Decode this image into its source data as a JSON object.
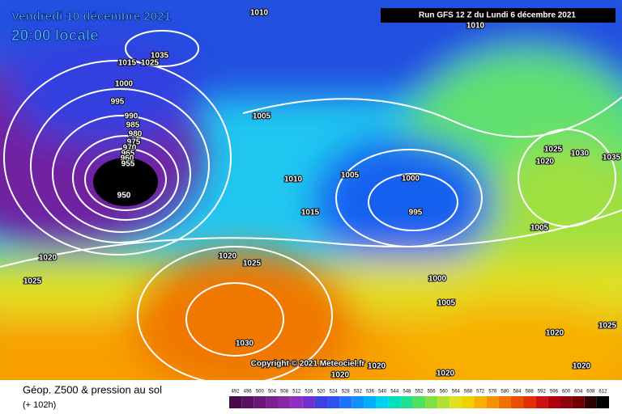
{
  "header": {
    "date": "Vendredi 10 décembre 2021",
    "time": "20:00 locale",
    "run": "Run GFS 12 Z du Lundi 6 décembre 2021"
  },
  "copyright": "Copyright © 2021 Meteociel.fr",
  "footer": {
    "title": "Géop. Z500 & pression au sol",
    "lead": "(+ 102h)"
  },
  "isobar_labels": [
    1010,
    1010,
    1035,
    1015,
    1025,
    1000,
    995,
    990,
    985,
    980,
    975,
    970,
    965,
    960,
    955,
    950,
    1005,
    1005,
    1000,
    995,
    1010,
    1015,
    1020,
    1020,
    1025,
    1025,
    1030,
    1000,
    1005,
    1005,
    1020,
    1025,
    1030,
    1035,
    1020,
    1025,
    1020,
    1020,
    1020,
    1020
  ],
  "scale": {
    "values": [
      492,
      496,
      500,
      504,
      508,
      512,
      516,
      520,
      524,
      528,
      532,
      536,
      540,
      544,
      548,
      552,
      556,
      560,
      564,
      568,
      572,
      576,
      580,
      584,
      588,
      592,
      596,
      600,
      604,
      608,
      612
    ],
    "colors": [
      "#4a0a4a",
      "#5a1060",
      "#6a1878",
      "#7a2090",
      "#8a28a8",
      "#9030c0",
      "#7030d0",
      "#4040e0",
      "#3050f0",
      "#2070ff",
      "#1090ff",
      "#00b0ff",
      "#00d0f0",
      "#00e0c0",
      "#20e090",
      "#50e060",
      "#80e040",
      "#b0e030",
      "#e0e020",
      "#f0d000",
      "#f8b000",
      "#f89000",
      "#f07000",
      "#e85000",
      "#e03000",
      "#d01010",
      "#b00010",
      "#900010",
      "#700000",
      "#300000",
      "#000000"
    ]
  }
}
